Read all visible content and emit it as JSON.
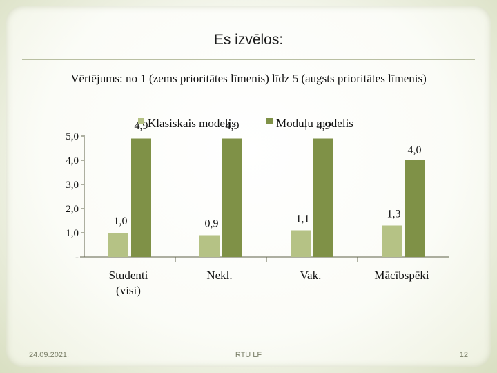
{
  "slide": {
    "title": "Es izvēlos:",
    "footer_date": "24.09.2021.",
    "footer_center": "RTU LF",
    "page_number": "12"
  },
  "chart_data": {
    "type": "bar",
    "title": "Vērtējums: no 1 (zems prioritātes līmenis) līdz 5 (augsts prioritātes līmenis)",
    "categories": [
      [
        "Studenti",
        "(visi)"
      ],
      [
        "Nekl."
      ],
      [
        "Vak."
      ],
      [
        "Mācībspēki"
      ]
    ],
    "series": [
      {
        "name": "Klasiskais modelis",
        "values": [
          1.0,
          0.9,
          1.1,
          1.3
        ],
        "labels": [
          "1,0",
          "0,9",
          "1,1",
          "1,3"
        ],
        "color": "#b5c285"
      },
      {
        "name": "Moduļu modelis",
        "values": [
          4.9,
          4.9,
          4.9,
          4.0
        ],
        "labels": [
          "4,9",
          "4,9",
          "4,9",
          "4,0"
        ],
        "color": "#7f9147"
      }
    ],
    "yticks": [
      0,
      1,
      2,
      3,
      4,
      5
    ],
    "ytick_labels": [
      "-",
      "1,0",
      "2,0",
      "3,0",
      "4,0",
      "5,0"
    ],
    "ylim": [
      0,
      5
    ],
    "grid": false,
    "legend_position": "top"
  }
}
